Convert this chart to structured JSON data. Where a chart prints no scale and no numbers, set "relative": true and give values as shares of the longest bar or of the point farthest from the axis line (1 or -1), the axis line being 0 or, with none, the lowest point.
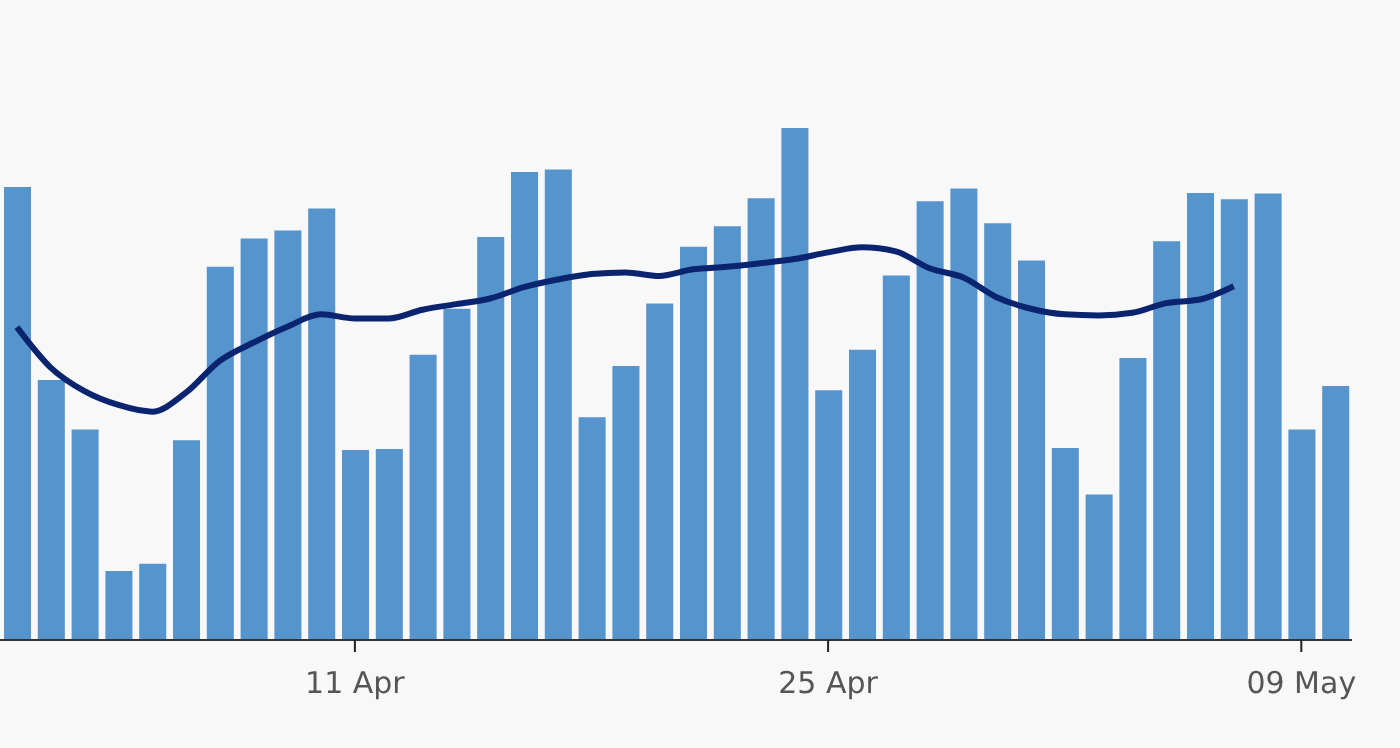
{
  "chart_data": {
    "type": "bar",
    "relative": true,
    "legend": false,
    "x": [
      "--04-01",
      "--04-02",
      "--04-03",
      "--04-04",
      "--04-05",
      "--04-06",
      "--04-07",
      "--04-08",
      "--04-09",
      "--04-10",
      "--04-11",
      "--04-12",
      "--04-13",
      "--04-14",
      "--04-15",
      "--04-16",
      "--04-17",
      "--04-18",
      "--04-19",
      "--04-20",
      "--04-21",
      "--04-22",
      "--04-23",
      "--04-24",
      "--04-25",
      "--04-26",
      "--04-27",
      "--04-28",
      "--04-29",
      "--04-30",
      "--05-01",
      "--05-02",
      "--05-03",
      "--05-04",
      "--05-05",
      "--05-06",
      "--05-07",
      "--05-08",
      "--05-09",
      "--05-10"
    ],
    "xlim": [
      "--03-31T12:00",
      "--05-10T12:00"
    ],
    "xticks": [
      {
        "value": "--04-11",
        "label": "11 Apr"
      },
      {
        "value": "--04-25",
        "label": "25 Apr"
      },
      {
        "value": "--05-09",
        "label": "09 May"
      }
    ],
    "series": [
      {
        "color": "#5594cc",
        "values": [
          0.885,
          0.508,
          0.411,
          0.135,
          0.149,
          0.39,
          0.729,
          0.784,
          0.8,
          0.843,
          0.371,
          0.373,
          0.557,
          0.647,
          0.787,
          0.914,
          0.919,
          0.435,
          0.535,
          0.657,
          0.768,
          0.808,
          0.863,
          1,
          0.488,
          0.567,
          0.712,
          0.857,
          0.882,
          0.814,
          0.741,
          0.375,
          0.284,
          0.551,
          0.779,
          0.873,
          0.861,
          0.872,
          0.411,
          0.496
        ]
      },
      {
        "type": "line",
        "color": "#0b2470",
        "marker": "none",
        "line_style": "solid",
        "values": [
          0.611,
          0.532,
          0.486,
          0.459,
          0.446,
          0.483,
          0.545,
          0.581,
          0.612,
          0.636,
          0.628,
          0.628,
          0.645,
          0.656,
          0.667,
          0.689,
          0.704,
          0.715,
          0.718,
          0.711,
          0.724,
          0.729,
          0.736,
          0.744,
          0.757,
          0.767,
          0.759,
          0.726,
          0.708,
          0.669,
          0.647,
          0.636,
          0.634,
          0.639,
          0.658,
          0.665,
          0.691,
          null,
          null,
          null
        ]
      }
    ]
  }
}
